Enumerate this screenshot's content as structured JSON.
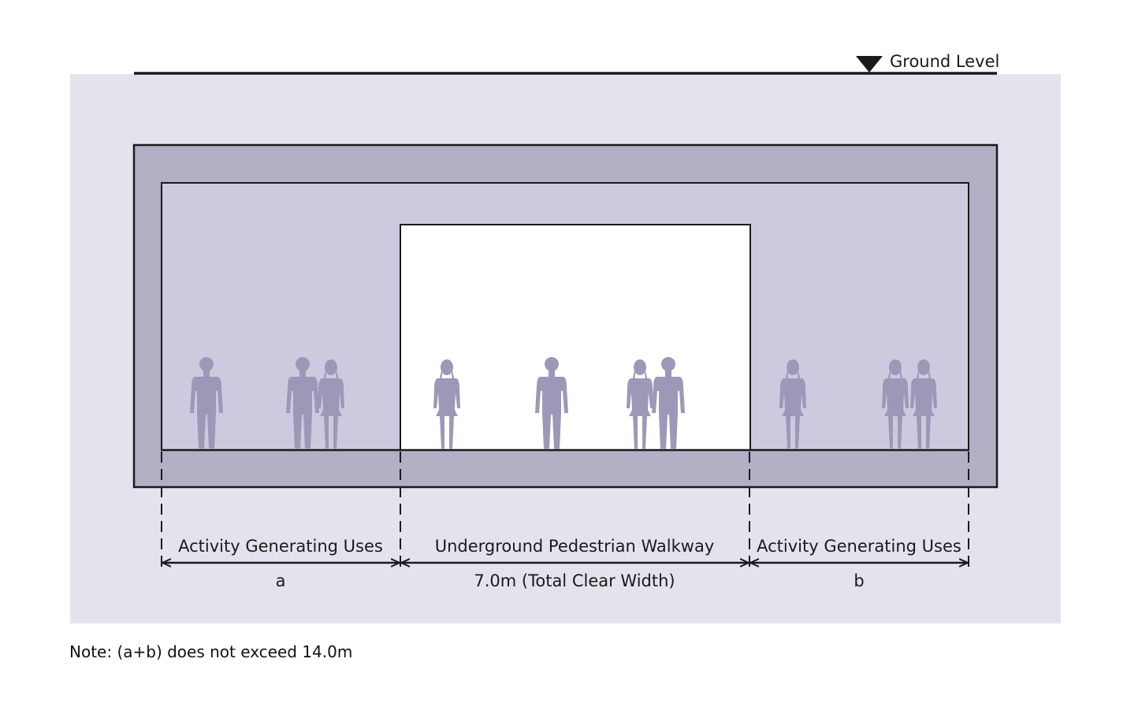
{
  "ground_level_label": "Ground Level",
  "zones": [
    {
      "label": "Activity Generating Uses",
      "dimension": "a"
    },
    {
      "label": "Underground Pedestrian Walkway",
      "dimension": "7.0m (Total Clear Width)"
    },
    {
      "label": "Activity Generating Uses",
      "dimension": "b"
    }
  ],
  "note": "Note: (a+b) does not exceed 14.0m",
  "colors": {
    "background_panel": "#e4e3ed",
    "structure_outer": "#b1b0c4",
    "interior_shop": "#cdcae0",
    "walkway": "#ffffff",
    "people": "#9c99b8",
    "lines": "#1a1a1a"
  }
}
